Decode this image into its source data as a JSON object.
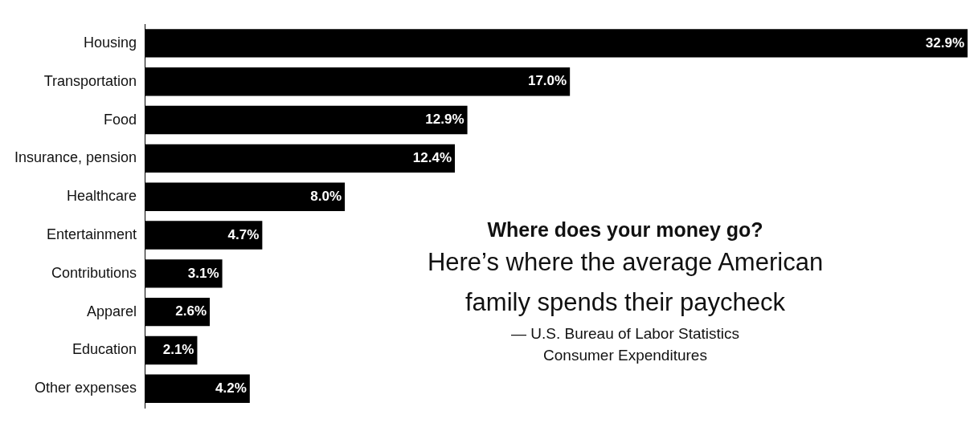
{
  "chart_data": {
    "type": "bar",
    "orientation": "horizontal",
    "relative": false,
    "title": "Where does your money go?",
    "subtitle": "Here’s where the average American family spends their paycheck",
    "annotations": [
      "— U.S. Bureau of Labor Statistics",
      "Consumer Expenditures"
    ],
    "categories": [
      "Housing",
      "Transportation",
      "Food",
      "Insurance, pension",
      "Healthcare",
      "Entertainment",
      "Contributions",
      "Apparel",
      "Education",
      "Other expenses"
    ],
    "values": [
      32.9,
      17.0,
      12.9,
      12.4,
      8.0,
      4.7,
      3.1,
      2.6,
      2.1,
      4.2
    ],
    "value_labels": [
      "32.9%",
      "17.0%",
      "12.9%",
      "12.4%",
      "8.0%",
      "4.7%",
      "3.1%",
      "2.6%",
      "2.1%",
      "4.2%"
    ],
    "color": "#000000",
    "xlim": [
      0,
      32.9
    ],
    "legend": false
  }
}
